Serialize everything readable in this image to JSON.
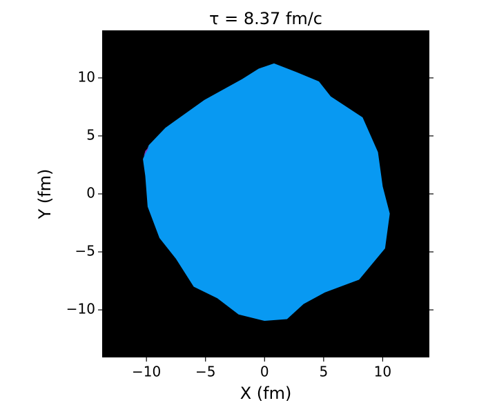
{
  "chart_data": {
    "type": "region",
    "title": "τ =  8.37 fm/c",
    "x_label": "X (fm)",
    "y_label": "Y (fm)",
    "background": "#000000",
    "xlim": [
      -13.75,
      13.95
    ],
    "ylim": [
      -14.1,
      14.1
    ],
    "xticks": [
      {
        "value": -10,
        "label": "−10"
      },
      {
        "value": -5,
        "label": "−5"
      },
      0,
      5,
      10
    ],
    "yticks": [
      {
        "value": -10,
        "label": "−10"
      },
      {
        "value": -5,
        "label": "−5"
      },
      0,
      5,
      10
    ],
    "regions": [
      {
        "color": "#0899f2",
        "x": [
          0.8,
          2.7,
          4.6,
          5.6,
          8.3,
          9.6,
          10.0,
          10.6,
          10.2,
          8.0,
          5.1,
          3.3,
          1.9,
          0,
          -2.2,
          -4.0,
          -6.0,
          -7.5,
          -8.9,
          -9.9,
          -10.1,
          -10.3,
          -9.8,
          -8.4,
          -5.1,
          -1.9,
          -0.5
        ],
        "y": [
          11.25,
          10.5,
          9.7,
          8.4,
          6.6,
          3.6,
          0.65,
          -1.7,
          -4.7,
          -7.4,
          -8.5,
          -9.5,
          -10.8,
          -10.95,
          -10.4,
          -9.0,
          -8.0,
          -5.6,
          -3.8,
          -1.1,
          1.55,
          3.0,
          4.2,
          5.7,
          8.1,
          9.9,
          10.8
        ]
      },
      {
        "color": "#7b35b8",
        "x": [
          -10.25,
          -9.9,
          -9.75,
          -10.1,
          -10.3
        ],
        "y": [
          3.2,
          3.8,
          4.1,
          3.7,
          3.0
        ]
      }
    ]
  }
}
